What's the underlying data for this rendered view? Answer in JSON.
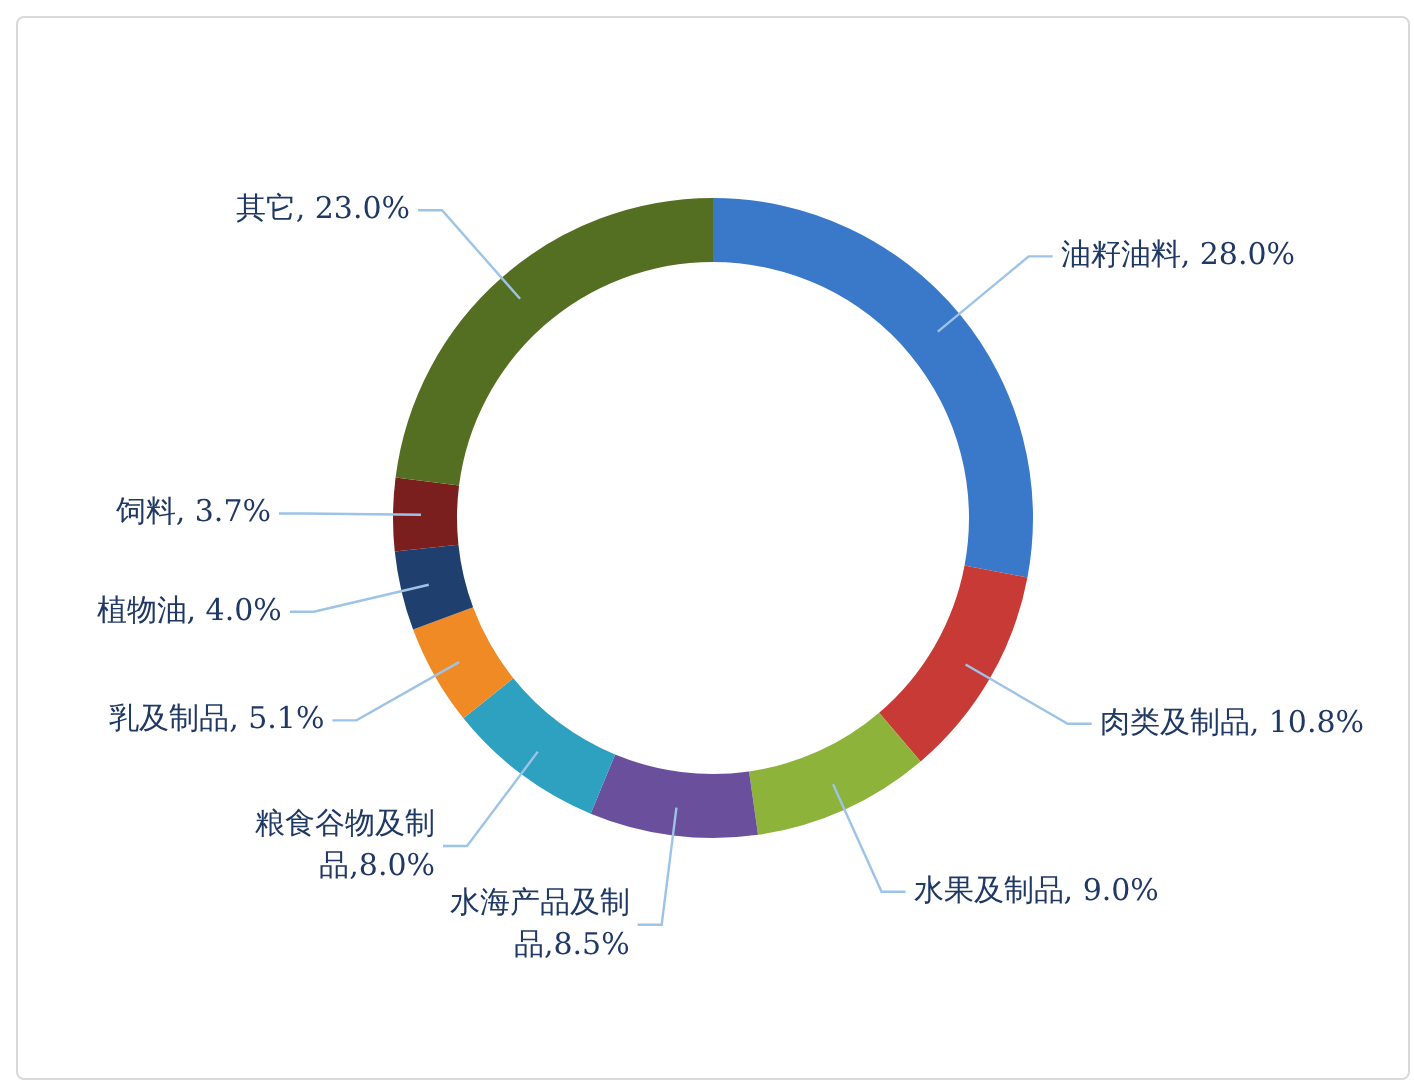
{
  "chart_data": {
    "type": "donut",
    "categories": [
      "油籽油料",
      "肉类及制品",
      "水果及制品",
      "水海产品及制品",
      "粮食谷物及制品",
      "乳及制品",
      "植物油",
      "饲料",
      "其它"
    ],
    "values": [
      28.0,
      10.8,
      9.0,
      8.5,
      8.0,
      5.1,
      4.0,
      3.7,
      23.0
    ],
    "value_labels": [
      "28.0%",
      "10.8%",
      "9.0%",
      "8.5%",
      "8.0%",
      "5.1%",
      "4.0%",
      "3.7%",
      "23.0%"
    ],
    "colors": [
      "#3a78c9",
      "#c83a35",
      "#8db33a",
      "#6a4f9c",
      "#2ea0c0",
      "#f08a24",
      "#1f3f6e",
      "#7a1e1e",
      "#556f22"
    ],
    "legend": false
  }
}
